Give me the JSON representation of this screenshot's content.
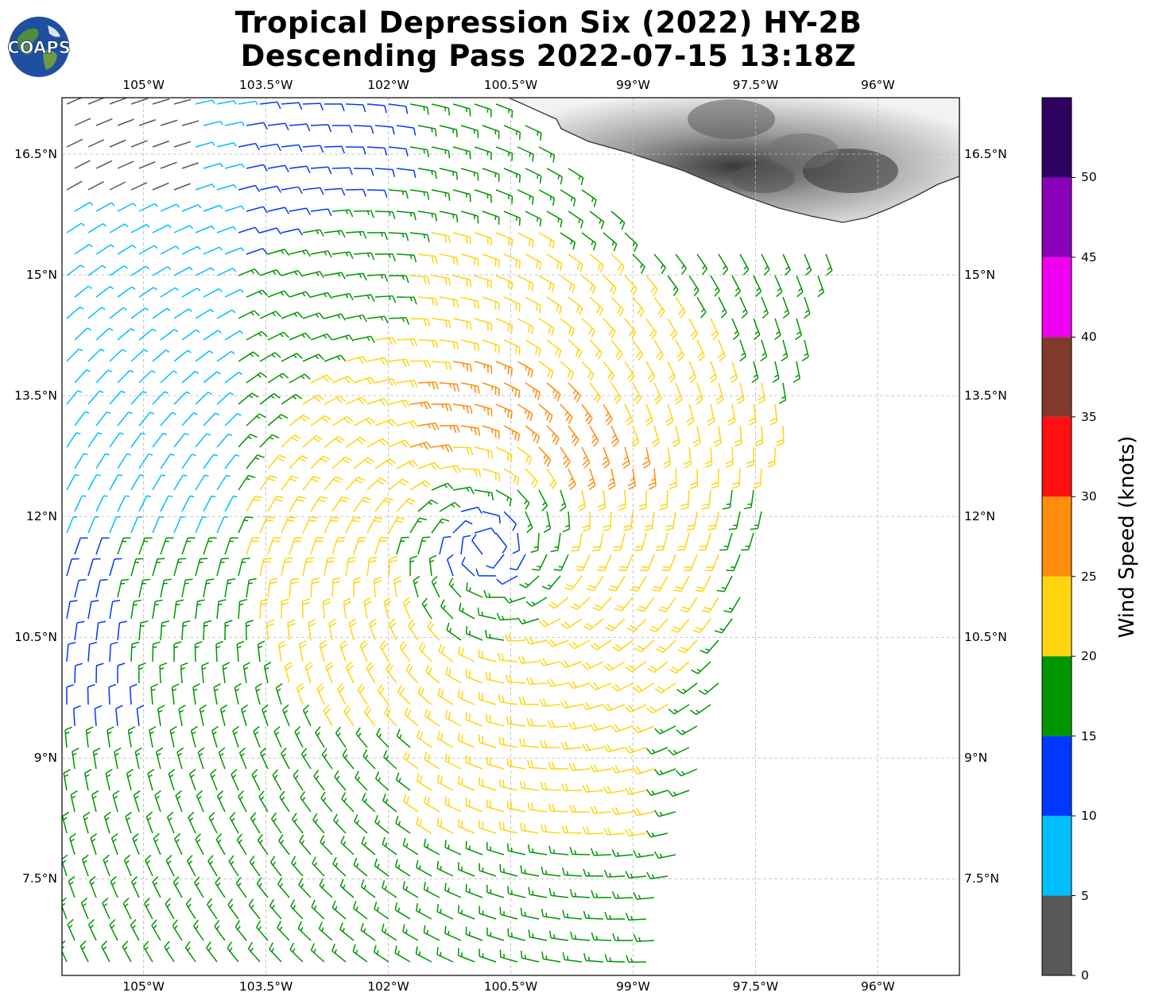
{
  "title": {
    "line1": "Tropical Depression Six (2022) HY-2B",
    "line2": "Descending Pass 2022-07-15 13:18Z"
  },
  "logo": {
    "text": "COAPS",
    "icon": "globe-logo-icon"
  },
  "map": {
    "type": "wind-barb-map",
    "lon_range": [
      -106.0,
      -95.0
    ],
    "lat_range": [
      6.3,
      17.2
    ],
    "x_tick_labels": [
      "105°W",
      "103.5°W",
      "102°W",
      "100.5°W",
      "99°W",
      "97.5°W",
      "96°W"
    ],
    "x_tick_values": [
      -105,
      -103.5,
      -102,
      -100.5,
      -99,
      -97.5,
      -96
    ],
    "y_tick_labels": [
      "16.5°N",
      "15°N",
      "13.5°N",
      "12°N",
      "10.5°N",
      "9°N",
      "7.5°N"
    ],
    "y_tick_values": [
      16.5,
      15,
      13.5,
      12,
      10.5,
      9,
      7.5
    ],
    "gridlines": true,
    "land_shading": "grayscale topography (Mexico coast, top-right)",
    "storm_center": {
      "lon": -100.8,
      "lat": 11.6
    }
  },
  "colorbar": {
    "title": "Wind Speed (knots)",
    "tick_labels": [
      "0",
      "5",
      "10",
      "15",
      "20",
      "25",
      "30",
      "35",
      "40",
      "45",
      "50"
    ],
    "tick_values": [
      0,
      5,
      10,
      15,
      20,
      25,
      30,
      35,
      40,
      45,
      50
    ],
    "bins": [
      {
        "min": 0,
        "max": 5,
        "color": "#585858"
      },
      {
        "min": 5,
        "max": 10,
        "color": "#00bfff"
      },
      {
        "min": 10,
        "max": 15,
        "color": "#0038ff"
      },
      {
        "min": 15,
        "max": 20,
        "color": "#009600"
      },
      {
        "min": 20,
        "max": 25,
        "color": "#ffd510"
      },
      {
        "min": 25,
        "max": 30,
        "color": "#ff8c0a"
      },
      {
        "min": 30,
        "max": 35,
        "color": "#ff1010"
      },
      {
        "min": 35,
        "max": 40,
        "color": "#7f3a2a"
      },
      {
        "min": 40,
        "max": 45,
        "color": "#f000f0"
      },
      {
        "min": 45,
        "max": 50,
        "color": "#8a00b8"
      },
      {
        "min": 50,
        "max": 55,
        "color": "#2e0060"
      }
    ],
    "max": 55
  }
}
